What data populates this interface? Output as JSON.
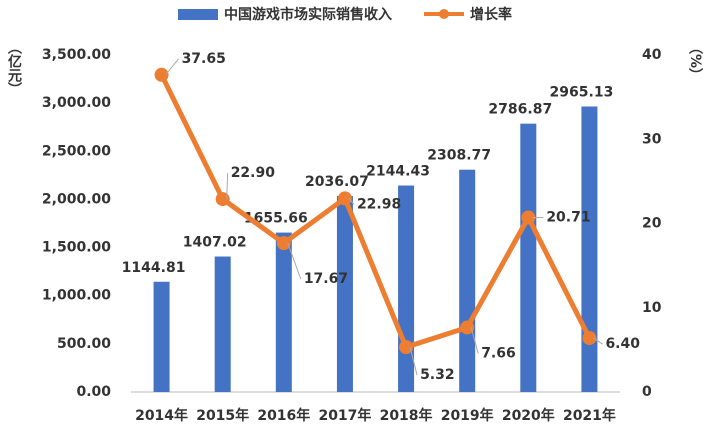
{
  "chart_data": {
    "type": "bar",
    "categories": [
      "2014年",
      "2015年",
      "2016年",
      "2017年",
      "2018年",
      "2019年",
      "2020年",
      "2021年"
    ],
    "series": [
      {
        "name": "中国游戏市场实际销售收入",
        "type": "bar",
        "color": "#4472c4",
        "values": [
          1144.81,
          1407.02,
          1655.66,
          2036.07,
          2144.43,
          2308.77,
          2786.87,
          2965.13
        ]
      },
      {
        "name": "增长率",
        "type": "line",
        "axis": "y2",
        "color": "#ed7d31",
        "values": [
          37.65,
          22.9,
          17.67,
          22.98,
          5.32,
          7.66,
          20.71,
          6.4
        ],
        "value_labels": [
          "37.65",
          "22.90",
          "17.67",
          "22.98",
          "5.32",
          "7.66",
          "20.71",
          "6.40"
        ]
      }
    ],
    "y_label": "（亿元）",
    "y2_label": "（%）",
    "ylim": [
      0,
      3500
    ],
    "yticks": [
      {
        "value": 0,
        "label": "0.00"
      },
      {
        "value": 500,
        "label": "500.00"
      },
      {
        "value": 1000,
        "label": "1,000.00"
      },
      {
        "value": 1500,
        "label": "1,500.00"
      },
      {
        "value": 2000,
        "label": "2,000.00"
      },
      {
        "value": 2500,
        "label": "2,500.00"
      },
      {
        "value": 3000,
        "label": "3,000.00"
      },
      {
        "value": 3500,
        "label": "3,500.00"
      }
    ],
    "y2lim": [
      0,
      40
    ],
    "y2ticks": [
      0,
      10,
      20,
      30,
      40
    ],
    "grid": false,
    "legend": "top"
  }
}
